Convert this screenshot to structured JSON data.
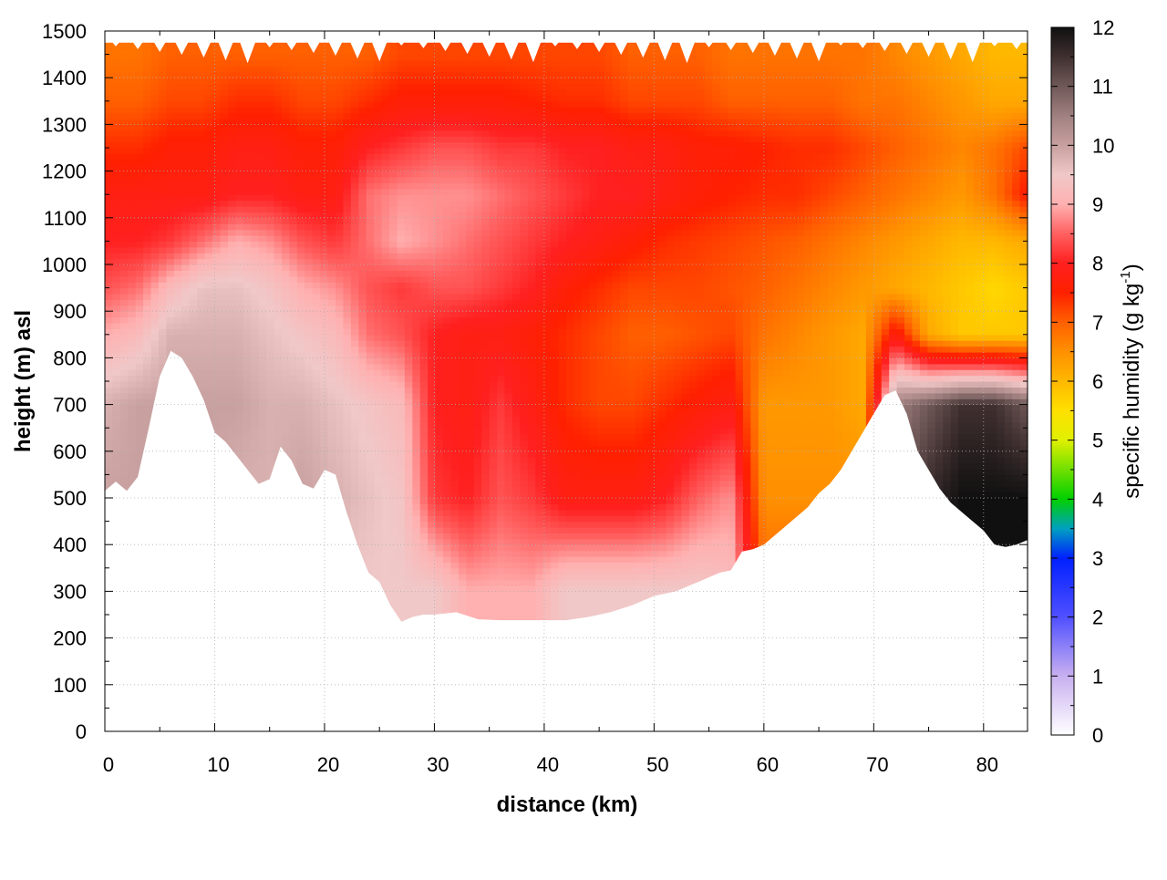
{
  "chart_data": {
    "type": "heatmap",
    "title": "",
    "xlabel": "distance (km)",
    "ylabel": "height (m) asl",
    "xlim": [
      0,
      84
    ],
    "ylim": [
      0,
      1500
    ],
    "x_ticks": [
      0,
      10,
      20,
      30,
      40,
      50,
      60,
      70,
      80
    ],
    "y_ticks": [
      0,
      100,
      200,
      300,
      400,
      500,
      600,
      700,
      800,
      900,
      1000,
      1100,
      1200,
      1300,
      1400,
      1500
    ],
    "grid": true,
    "colorbar": {
      "label": "specific humidity (g kg",
      "label_superscript": "-1",
      "label_suffix": ")",
      "range": [
        0,
        12
      ],
      "ticks": [
        0,
        1,
        2,
        3,
        4,
        5,
        6,
        7,
        8,
        9,
        10,
        11,
        12
      ],
      "colorstops": [
        {
          "value": 0,
          "color": "#ffffff"
        },
        {
          "value": 1,
          "color": "#c8b0f0"
        },
        {
          "value": 2,
          "color": "#5050ff"
        },
        {
          "value": 3,
          "color": "#0020ff"
        },
        {
          "value": 3.5,
          "color": "#00a0c0"
        },
        {
          "value": 4,
          "color": "#00d000"
        },
        {
          "value": 5,
          "color": "#e0f000"
        },
        {
          "value": 5.5,
          "color": "#ffe000"
        },
        {
          "value": 6.5,
          "color": "#ff9000"
        },
        {
          "value": 7,
          "color": "#ff6000"
        },
        {
          "value": 7.5,
          "color": "#ff2000"
        },
        {
          "value": 8,
          "color": "#ff2020"
        },
        {
          "value": 8.5,
          "color": "#ff6060"
        },
        {
          "value": 9,
          "color": "#ffb0b0"
        },
        {
          "value": 9.5,
          "color": "#f0c8c8"
        },
        {
          "value": 10,
          "color": "#c8a0a0"
        },
        {
          "value": 10.5,
          "color": "#a08080"
        },
        {
          "value": 11,
          "color": "#705858"
        },
        {
          "value": 11.5,
          "color": "#403030"
        },
        {
          "value": 12,
          "color": "#101010"
        }
      ]
    },
    "terrain": {
      "x": [
        0,
        1,
        2,
        3,
        4,
        5,
        6,
        7,
        8,
        9,
        10,
        11,
        12,
        13,
        14,
        15,
        16,
        17,
        18,
        19,
        20,
        21,
        22,
        23,
        24,
        25,
        26,
        27,
        28,
        29,
        30,
        32,
        34,
        36,
        38,
        40,
        42,
        44,
        46,
        48,
        50,
        52,
        54,
        56,
        57,
        58,
        59,
        60,
        61,
        62,
        63,
        64,
        65,
        66,
        67,
        68,
        69,
        70,
        71,
        72,
        73,
        74,
        75,
        76,
        77,
        78,
        79,
        80,
        81,
        82,
        83,
        84
      ],
      "height": [
        515,
        535,
        515,
        545,
        650,
        760,
        815,
        800,
        760,
        710,
        640,
        620,
        590,
        560,
        530,
        540,
        610,
        580,
        530,
        520,
        560,
        550,
        470,
        400,
        340,
        320,
        270,
        235,
        245,
        250,
        250,
        255,
        240,
        238,
        238,
        238,
        238,
        245,
        255,
        270,
        290,
        300,
        320,
        340,
        345,
        385,
        390,
        400,
        420,
        440,
        460,
        480,
        510,
        530,
        560,
        600,
        640,
        680,
        720,
        730,
        680,
        600,
        560,
        520,
        490,
        470,
        450,
        430,
        400,
        395,
        400,
        410
      ]
    },
    "humidity_field": {
      "x": [
        0,
        3,
        6,
        9,
        12,
        15,
        18,
        21,
        24,
        27,
        30,
        33,
        36,
        39,
        42,
        45,
        48,
        51,
        54,
        57,
        60,
        63,
        66,
        69,
        72,
        75,
        78,
        81,
        84
      ],
      "z": [
        300,
        500,
        700,
        850,
        950,
        1050,
        1150,
        1250,
        1350,
        1450
      ],
      "values": [
        [
          10.0,
          10.0,
          9.5,
          9.5,
          9.5,
          9.5,
          9.5,
          9.5,
          9.5,
          9.5,
          9.5,
          9.0,
          9.0,
          9.0,
          9.5,
          9.5,
          9.5,
          9.5,
          9.5,
          9.3,
          7.0,
          7.0,
          7.0,
          7.0,
          11.0,
          11.5,
          12.0,
          12.0,
          12.0
        ],
        [
          10.0,
          10.0,
          10.0,
          10.0,
          9.8,
          9.8,
          10.0,
          9.8,
          9.6,
          9.4,
          8.2,
          8.0,
          8.4,
          8.2,
          7.8,
          7.8,
          7.8,
          8.0,
          8.5,
          8.8,
          6.5,
          6.5,
          6.5,
          6.5,
          11.0,
          11.6,
          12.0,
          12.0,
          12.0
        ],
        [
          9.8,
          10.0,
          10.0,
          10.0,
          10.0,
          9.8,
          9.8,
          9.6,
          9.4,
          9.2,
          8.0,
          7.8,
          8.2,
          7.8,
          7.4,
          7.2,
          7.2,
          7.4,
          7.6,
          7.8,
          6.4,
          6.4,
          6.4,
          6.2,
          10.5,
          11.0,
          11.5,
          11.5,
          11.0
        ],
        [
          9.0,
          9.2,
          9.8,
          9.8,
          9.8,
          9.6,
          9.4,
          9.2,
          8.6,
          8.4,
          8.0,
          7.8,
          7.8,
          7.6,
          7.4,
          7.2,
          7.0,
          7.0,
          7.1,
          7.2,
          6.8,
          6.6,
          6.4,
          6.2,
          7.8,
          6.2,
          5.8,
          5.8,
          5.8
        ],
        [
          8.4,
          8.6,
          9.2,
          9.6,
          9.6,
          9.4,
          9.0,
          8.8,
          8.4,
          8.2,
          8.4,
          8.4,
          8.2,
          8.0,
          7.6,
          7.4,
          7.2,
          7.2,
          7.2,
          7.1,
          7.0,
          6.8,
          6.6,
          6.4,
          6.2,
          6.0,
          5.8,
          5.6,
          5.8
        ],
        [
          8.0,
          8.0,
          8.2,
          8.6,
          9.0,
          8.8,
          8.4,
          8.2,
          8.6,
          9.0,
          8.8,
          8.6,
          8.4,
          8.2,
          8.0,
          7.8,
          7.6,
          7.4,
          7.3,
          7.2,
          7.1,
          7.0,
          6.8,
          6.6,
          6.4,
          6.2,
          6.0,
          6.0,
          6.2
        ],
        [
          7.8,
          7.8,
          7.8,
          7.8,
          8.0,
          8.0,
          7.8,
          7.8,
          8.6,
          8.8,
          8.8,
          8.8,
          8.6,
          8.4,
          8.2,
          8.0,
          8.0,
          7.8,
          7.6,
          7.5,
          7.4,
          7.4,
          7.2,
          7.0,
          6.8,
          6.6,
          6.4,
          6.8,
          7.6
        ],
        [
          7.4,
          7.4,
          7.6,
          7.6,
          7.8,
          7.8,
          7.6,
          7.6,
          8.0,
          8.2,
          8.4,
          8.4,
          8.2,
          8.2,
          8.0,
          8.0,
          7.8,
          7.8,
          7.6,
          7.6,
          7.5,
          7.4,
          7.4,
          7.2,
          7.0,
          6.8,
          6.6,
          6.8,
          7.2
        ],
        [
          7.0,
          7.0,
          7.2,
          7.2,
          7.4,
          7.4,
          7.2,
          7.2,
          7.4,
          7.6,
          7.6,
          7.6,
          7.6,
          7.5,
          7.4,
          7.4,
          7.2,
          7.2,
          7.2,
          7.0,
          7.0,
          7.0,
          7.0,
          6.8,
          6.8,
          6.6,
          6.4,
          6.2,
          6.2
        ],
        [
          6.8,
          6.8,
          7.0,
          7.0,
          7.0,
          7.0,
          7.0,
          7.0,
          7.0,
          7.2,
          7.2,
          7.2,
          7.2,
          7.2,
          7.2,
          7.2,
          7.0,
          7.0,
          7.0,
          6.8,
          6.8,
          6.8,
          6.8,
          6.8,
          6.6,
          6.4,
          6.2,
          6.0,
          6.0
        ]
      ]
    }
  }
}
